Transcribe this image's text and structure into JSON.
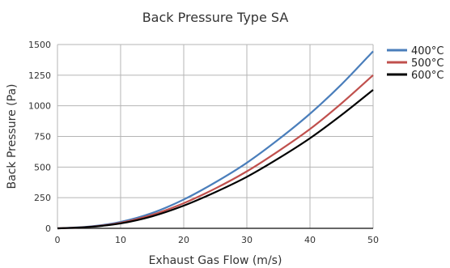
{
  "chart_data": {
    "type": "line",
    "title": "Back Pressure Type SA",
    "xlabel": "Exhaust Gas Flow (m/s)",
    "ylabel": "Back Pressure (Pa)",
    "xlim": [
      0,
      50
    ],
    "ylim": [
      0,
      1500
    ],
    "xticks": [
      0,
      10,
      20,
      30,
      40,
      50
    ],
    "yticks": [
      0,
      250,
      500,
      750,
      1000,
      1250,
      1500
    ],
    "grid": true,
    "legend_position": "top-right",
    "x": [
      0,
      5,
      10,
      15,
      20,
      25,
      30,
      35,
      40,
      45,
      50
    ],
    "series": [
      {
        "name": "400°C",
        "color": "#4a7ebb",
        "values": [
          0,
          14,
          52,
          125,
          235,
          375,
          535,
          725,
          935,
          1175,
          1445
        ]
      },
      {
        "name": "500°C",
        "color": "#c0504d",
        "values": [
          0,
          12,
          45,
          110,
          205,
          325,
          465,
          630,
          810,
          1020,
          1250
        ]
      },
      {
        "name": "600°C",
        "color": "#000000",
        "values": [
          0,
          11,
          40,
          98,
          185,
          295,
          420,
          570,
          735,
          925,
          1130
        ]
      }
    ]
  }
}
